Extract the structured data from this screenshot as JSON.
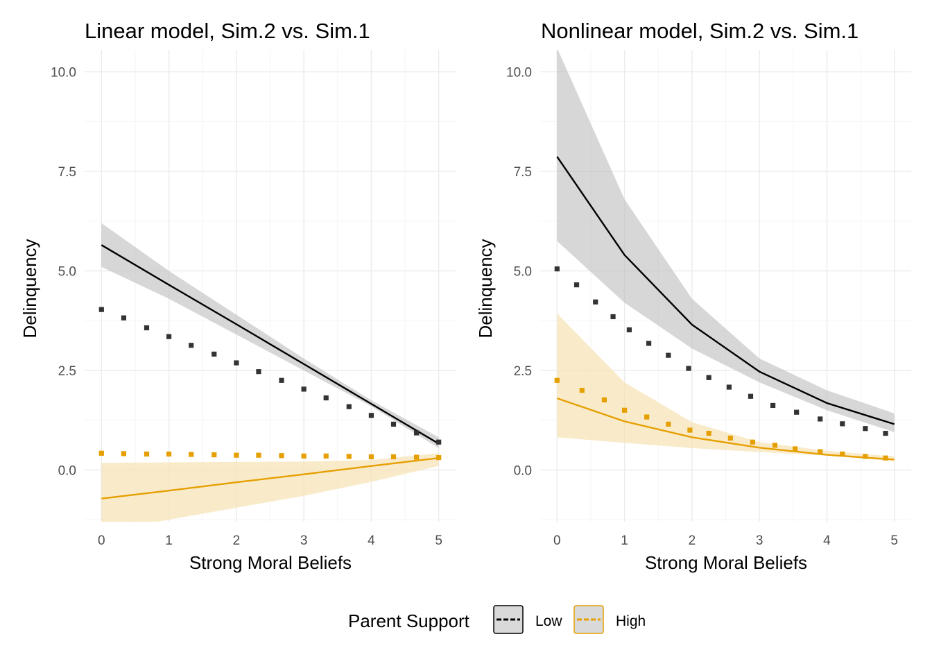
{
  "chart_data": [
    {
      "type": "line",
      "title": "Linear model, Sim.2 vs. Sim.1",
      "xlabel": "Strong Moral Beliefs",
      "ylabel": "Delinquency",
      "xlim": [
        -0.25,
        5.25
      ],
      "ylim": [
        -1.3,
        10.55
      ],
      "x_ticks": [
        0,
        1,
        2,
        3,
        4,
        5
      ],
      "y_ticks": [
        0.0,
        2.5,
        5.0,
        7.5,
        10.0
      ],
      "x_tick_labels": [
        "0",
        "1",
        "2",
        "3",
        "4",
        "5"
      ],
      "y_tick_labels": [
        "0.0",
        "2.5",
        "5.0",
        "7.5",
        "10.0"
      ],
      "grid": true,
      "series": [
        {
          "name": "Low",
          "color": "#000000",
          "x": [
            0,
            1,
            2,
            3,
            4,
            5
          ],
          "y": [
            5.65,
            4.65,
            3.66,
            2.66,
            1.66,
            0.66
          ],
          "lower": [
            5.1,
            4.3,
            3.4,
            2.5,
            1.6,
            0.55
          ],
          "upper": [
            6.2,
            5.0,
            3.9,
            2.8,
            1.75,
            0.82
          ],
          "dotted_x": [
            0.0,
            0.33,
            0.67,
            1.0,
            1.33,
            1.67,
            2.0,
            2.33,
            2.67,
            3.0,
            3.33,
            3.67,
            4.0,
            4.33,
            4.67,
            5.0
          ],
          "dotted_y": [
            4.03,
            3.82,
            3.57,
            3.35,
            3.13,
            2.91,
            2.69,
            2.47,
            2.25,
            2.03,
            1.81,
            1.59,
            1.37,
            1.15,
            0.93,
            0.7
          ]
        },
        {
          "name": "High",
          "color": "#E69F00",
          "x": [
            0,
            1,
            2,
            3,
            4,
            5
          ],
          "y": [
            -0.72,
            -0.52,
            -0.31,
            -0.11,
            0.1,
            0.3
          ],
          "lower": [
            -1.55,
            -1.25,
            -0.95,
            -0.65,
            -0.3,
            0.1
          ],
          "upper": [
            0.18,
            0.19,
            0.2,
            0.21,
            0.25,
            0.42
          ],
          "dotted_x": [
            0.0,
            0.33,
            0.67,
            1.0,
            1.33,
            1.67,
            2.0,
            2.33,
            2.67,
            3.0,
            3.33,
            3.67,
            4.0,
            4.33,
            4.67,
            5.0
          ],
          "dotted_y": [
            0.42,
            0.41,
            0.4,
            0.4,
            0.39,
            0.38,
            0.37,
            0.37,
            0.36,
            0.35,
            0.35,
            0.34,
            0.33,
            0.33,
            0.32,
            0.31
          ]
        }
      ]
    },
    {
      "type": "line",
      "title": "Nonlinear model, Sim.2 vs. Sim.1",
      "xlabel": "Strong Moral Beliefs",
      "ylabel": "Delinquency",
      "xlim": [
        -0.25,
        5.25
      ],
      "ylim": [
        -1.3,
        10.55
      ],
      "x_ticks": [
        0,
        1,
        2,
        3,
        4,
        5
      ],
      "y_ticks": [
        0.0,
        2.5,
        5.0,
        7.5,
        10.0
      ],
      "x_tick_labels": [
        "0",
        "1",
        "2",
        "3",
        "4",
        "5"
      ],
      "y_tick_labels": [
        "0.0",
        "2.5",
        "5.0",
        "7.5",
        "10.0"
      ],
      "grid": true,
      "series": [
        {
          "name": "Low",
          "color": "#000000",
          "x": [
            0,
            1,
            2,
            3,
            4,
            5
          ],
          "y": [
            7.87,
            5.4,
            3.65,
            2.47,
            1.68,
            1.15
          ],
          "lower": [
            5.75,
            4.2,
            3.05,
            2.2,
            1.5,
            0.95
          ],
          "upper": [
            10.6,
            6.8,
            4.3,
            2.8,
            2.0,
            1.42
          ],
          "dotted_x": [
            0.0,
            0.29,
            0.57,
            0.83,
            1.07,
            1.36,
            1.65,
            1.95,
            2.25,
            2.55,
            2.87,
            3.2,
            3.55,
            3.9,
            4.23,
            4.57,
            4.87
          ],
          "dotted_y": [
            5.05,
            4.65,
            4.22,
            3.85,
            3.52,
            3.18,
            2.88,
            2.55,
            2.32,
            2.08,
            1.85,
            1.62,
            1.45,
            1.28,
            1.16,
            1.04,
            0.92
          ]
        },
        {
          "name": "High",
          "color": "#E69F00",
          "x": [
            0,
            1,
            2,
            3,
            4,
            5
          ],
          "y": [
            1.8,
            1.22,
            0.82,
            0.56,
            0.38,
            0.26
          ],
          "lower": [
            0.82,
            0.68,
            0.55,
            0.45,
            0.36,
            0.22
          ],
          "upper": [
            3.93,
            2.2,
            1.2,
            0.7,
            0.48,
            0.34
          ],
          "dotted_x": [
            0.0,
            0.37,
            0.7,
            1.0,
            1.33,
            1.65,
            1.97,
            2.25,
            2.57,
            2.9,
            3.23,
            3.53,
            3.9,
            4.23,
            4.57,
            4.87
          ],
          "dotted_y": [
            2.25,
            2.0,
            1.76,
            1.5,
            1.33,
            1.15,
            1.0,
            0.92,
            0.8,
            0.7,
            0.62,
            0.53,
            0.46,
            0.4,
            0.34,
            0.3
          ]
        }
      ]
    }
  ],
  "legend": {
    "title": "Parent Support",
    "position": "bottom",
    "items": [
      {
        "label": "Low",
        "color": "#000000",
        "fill": "#d9d9d9"
      },
      {
        "label": "High",
        "color": "#E69F00",
        "fill": "#d9d9d9"
      }
    ]
  },
  "colors": {
    "low": "#000000",
    "high": "#E69F00",
    "low_band": "#bfbfbf",
    "high_band": "#f6e3b4",
    "grid_major": "#ebebeb",
    "grid_minor": "#f5f5f5",
    "dotted_low": "#333333"
  }
}
